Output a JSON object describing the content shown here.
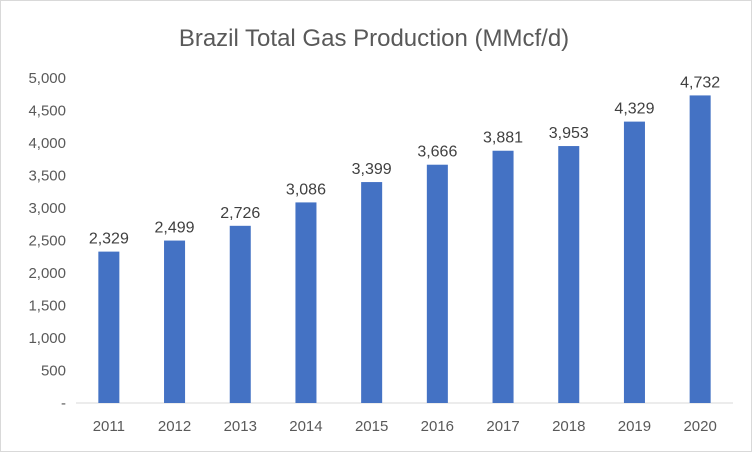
{
  "chart_data": {
    "type": "bar",
    "title": "Brazil Total Gas Production (MMcf/d)",
    "categories": [
      "2011",
      "2012",
      "2013",
      "2014",
      "2015",
      "2016",
      "2017",
      "2018",
      "2019",
      "2020"
    ],
    "values": [
      2329,
      2499,
      2726,
      3086,
      3399,
      3666,
      3881,
      3953,
      4329,
      4732
    ],
    "value_labels": [
      "2,329",
      "2,499",
      "2,726",
      "3,086",
      "3,399",
      "3,666",
      "3,881",
      "3,953",
      "4,329",
      "4,732"
    ],
    "xlabel": "",
    "ylabel": "",
    "ylim": [
      0,
      5000
    ],
    "y_ticks": [
      0,
      500,
      1000,
      1500,
      2000,
      2500,
      3000,
      3500,
      4000,
      4500,
      5000
    ],
    "y_tick_labels": [
      "-",
      "500",
      "1,000",
      "1,500",
      "2,000",
      "2,500",
      "3,000",
      "3,500",
      "4,000",
      "4,500",
      "5,000"
    ],
    "grid": false,
    "legend": "none",
    "bar_color": "#4472C4",
    "axis_color": "#d9d9d9"
  }
}
